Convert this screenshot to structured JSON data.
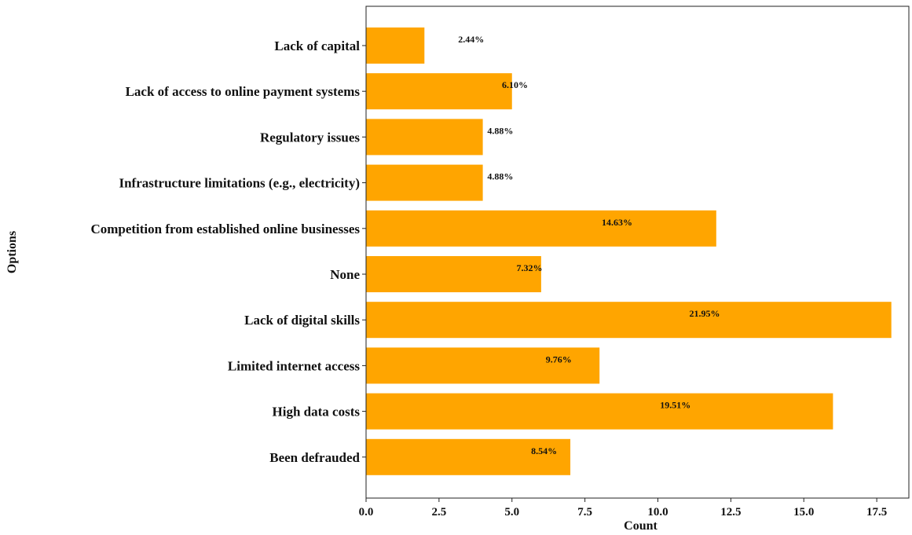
{
  "chart_data": {
    "type": "bar",
    "orientation": "horizontal",
    "xlabel": "Count",
    "ylabel": "Options",
    "xlim": [
      0,
      18.6
    ],
    "xticks": [
      0.0,
      2.5,
      5.0,
      7.5,
      10.0,
      12.5,
      15.0,
      17.5
    ],
    "xtick_labels": [
      "0.0",
      "2.5",
      "5.0",
      "7.5",
      "10.0",
      "12.5",
      "15.0",
      "17.5"
    ],
    "bar_color": "#FFA500",
    "grid": false,
    "categories": [
      "Lack of capital",
      "Lack of access to online payment systems",
      "Regulatory issues",
      "Infrastructure limitations (e.g., electricity)",
      "Competition from established online businesses",
      "None",
      "Lack of digital skills",
      "Limited internet access",
      "High data costs",
      "Been defrauded"
    ],
    "values": [
      2,
      5,
      4,
      4,
      12,
      6,
      18,
      8,
      16,
      7
    ],
    "data_labels": [
      "2.44%",
      "6.10%",
      "4.88%",
      "4.88%",
      "14.63%",
      "7.32%",
      "21.95%",
      "9.76%",
      "19.51%",
      "8.54%"
    ]
  }
}
